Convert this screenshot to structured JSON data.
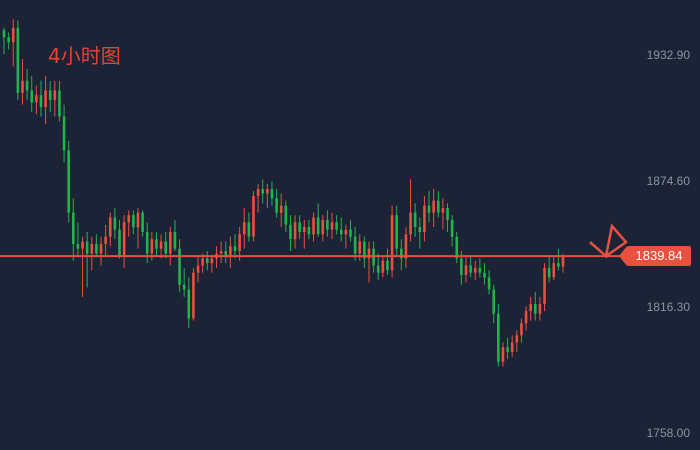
{
  "title": "4小时图",
  "colors": {
    "background": "#1d2336",
    "up": "#e9513f",
    "down": "#22b34c",
    "priceLine": "#e9513f",
    "title": "#e4432f",
    "tick": "#8b93a6"
  },
  "current_price_label": "1839.84",
  "chart_data": {
    "type": "candlestick",
    "title": "4小时图",
    "ylim": [
      1750,
      1950
    ],
    "y_ticks": [
      "1932.90",
      "1874.60",
      "1816.30",
      "1758.00"
    ],
    "current_price": 1839.84,
    "grid": false,
    "candles": [
      [
        1944.4,
        1945.5,
        1933.3,
        1941.1
      ],
      [
        1941.1,
        1943.3,
        1935.5,
        1938.8
      ],
      [
        1938.8,
        1949.4,
        1927.7,
        1945.5
      ],
      [
        1945.5,
        1948.8,
        1912.1,
        1915.4
      ],
      [
        1915.4,
        1931.0,
        1910.0,
        1921.0
      ],
      [
        1921.0,
        1926.5,
        1912.1,
        1916.5
      ],
      [
        1916.5,
        1923.2,
        1906.6,
        1911.0
      ],
      [
        1911.0,
        1918.8,
        1905.5,
        1914.3
      ],
      [
        1914.3,
        1921.0,
        1904.4,
        1908.8
      ],
      [
        1908.8,
        1923.2,
        1901.0,
        1916.5
      ],
      [
        1916.5,
        1920.9,
        1906.6,
        1912.1
      ],
      [
        1912.1,
        1920.9,
        1904.4,
        1916.5
      ],
      [
        1916.5,
        1920.9,
        1902.1,
        1904.4
      ],
      [
        1904.4,
        1909.9,
        1883.3,
        1888.8
      ],
      [
        1888.8,
        1893.2,
        1855.5,
        1860.0
      ],
      [
        1860.0,
        1866.6,
        1837.7,
        1845.5
      ],
      [
        1845.5,
        1855.5,
        1839.9,
        1843.3
      ],
      [
        1843.3,
        1848.8,
        1821.0,
        1846.6
      ],
      [
        1846.6,
        1851.0,
        1825.4,
        1841.0
      ],
      [
        1841.0,
        1848.8,
        1833.3,
        1845.5
      ],
      [
        1845.5,
        1849.9,
        1839.9,
        1841.0
      ],
      [
        1841.0,
        1848.8,
        1835.5,
        1845.5
      ],
      [
        1845.5,
        1854.3,
        1840.0,
        1848.8
      ],
      [
        1848.8,
        1859.9,
        1844.4,
        1857.7
      ],
      [
        1857.7,
        1862.1,
        1847.7,
        1852.1
      ],
      [
        1852.1,
        1856.6,
        1838.8,
        1840.0
      ],
      [
        1840.0,
        1858.8,
        1834.4,
        1855.5
      ],
      [
        1855.5,
        1861.0,
        1848.8,
        1858.8
      ],
      [
        1858.8,
        1861.0,
        1850.0,
        1853.2
      ],
      [
        1853.2,
        1862.1,
        1843.3,
        1859.9
      ],
      [
        1859.9,
        1861.0,
        1848.8,
        1851.0
      ],
      [
        1851.0,
        1855.5,
        1836.6,
        1841.0
      ],
      [
        1841.0,
        1851.0,
        1837.7,
        1847.7
      ],
      [
        1847.7,
        1851.0,
        1839.9,
        1843.3
      ],
      [
        1843.3,
        1849.9,
        1838.8,
        1846.6
      ],
      [
        1846.6,
        1851.0,
        1838.8,
        1841.0
      ],
      [
        1841.0,
        1853.3,
        1835.5,
        1851.0
      ],
      [
        1851.0,
        1856.6,
        1842.2,
        1843.3
      ],
      [
        1843.3,
        1847.7,
        1823.2,
        1826.6
      ],
      [
        1826.6,
        1834.4,
        1821.0,
        1824.4
      ],
      [
        1824.4,
        1830.0,
        1806.6,
        1811.0
      ],
      [
        1811.0,
        1834.4,
        1810.0,
        1832.2
      ],
      [
        1832.2,
        1839.9,
        1827.7,
        1835.5
      ],
      [
        1835.5,
        1841.0,
        1832.2,
        1838.8
      ],
      [
        1838.8,
        1842.2,
        1833.3,
        1836.6
      ],
      [
        1836.6,
        1840.0,
        1832.2,
        1838.8
      ],
      [
        1838.8,
        1844.4,
        1834.4,
        1841.0
      ],
      [
        1841.0,
        1846.6,
        1836.6,
        1842.2
      ],
      [
        1842.2,
        1846.6,
        1836.6,
        1839.9
      ],
      [
        1839.9,
        1848.8,
        1834.4,
        1844.4
      ],
      [
        1844.4,
        1850.0,
        1838.8,
        1842.2
      ],
      [
        1842.2,
        1853.3,
        1837.7,
        1850.0
      ],
      [
        1850.0,
        1862.1,
        1843.3,
        1855.5
      ],
      [
        1855.5,
        1860.0,
        1846.6,
        1848.8
      ],
      [
        1848.8,
        1869.9,
        1846.6,
        1867.7
      ],
      [
        1867.7,
        1873.2,
        1860.0,
        1870.9
      ],
      [
        1870.9,
        1875.4,
        1864.3,
        1868.8
      ],
      [
        1868.8,
        1873.2,
        1862.1,
        1870.9
      ],
      [
        1870.9,
        1874.3,
        1863.2,
        1866.6
      ],
      [
        1866.6,
        1871.0,
        1857.7,
        1859.9
      ],
      [
        1859.9,
        1868.8,
        1853.3,
        1863.2
      ],
      [
        1863.2,
        1865.5,
        1851.0,
        1854.4
      ],
      [
        1854.4,
        1858.8,
        1842.2,
        1847.7
      ],
      [
        1847.7,
        1858.8,
        1843.3,
        1855.5
      ],
      [
        1855.5,
        1858.8,
        1847.7,
        1851.0
      ],
      [
        1851.0,
        1856.6,
        1843.3,
        1853.3
      ],
      [
        1853.3,
        1856.6,
        1847.7,
        1849.9
      ],
      [
        1849.9,
        1860.0,
        1846.6,
        1857.7
      ],
      [
        1857.7,
        1864.3,
        1848.8,
        1850.0
      ],
      [
        1850.0,
        1858.8,
        1846.6,
        1856.6
      ],
      [
        1856.6,
        1861.0,
        1848.8,
        1852.1
      ],
      [
        1852.1,
        1859.9,
        1847.7,
        1855.5
      ],
      [
        1855.5,
        1858.8,
        1849.9,
        1852.1
      ],
      [
        1852.1,
        1857.7,
        1846.6,
        1849.9
      ],
      [
        1849.9,
        1854.4,
        1843.3,
        1852.1
      ],
      [
        1852.1,
        1856.6,
        1846.6,
        1848.8
      ],
      [
        1848.8,
        1853.3,
        1837.7,
        1841.0
      ],
      [
        1841.0,
        1849.9,
        1837.7,
        1846.6
      ],
      [
        1846.6,
        1848.8,
        1834.4,
        1838.8
      ],
      [
        1838.8,
        1846.6,
        1827.7,
        1843.3
      ],
      [
        1843.3,
        1846.6,
        1832.2,
        1835.5
      ],
      [
        1835.5,
        1841.0,
        1828.8,
        1832.2
      ],
      [
        1832.2,
        1839.9,
        1830.0,
        1837.7
      ],
      [
        1837.7,
        1843.3,
        1831.1,
        1833.3
      ],
      [
        1833.3,
        1863.2,
        1830.0,
        1858.8
      ],
      [
        1858.8,
        1863.2,
        1840.0,
        1843.3
      ],
      [
        1843.3,
        1847.7,
        1833.3,
        1838.8
      ],
      [
        1838.8,
        1853.2,
        1834.4,
        1849.9
      ],
      [
        1849.9,
        1875.4,
        1846.6,
        1860.0
      ],
      [
        1860.0,
        1864.3,
        1848.8,
        1853.3
      ],
      [
        1853.3,
        1857.7,
        1843.3,
        1851.0
      ],
      [
        1851.0,
        1867.7,
        1846.6,
        1863.2
      ],
      [
        1863.2,
        1869.9,
        1855.5,
        1859.9
      ],
      [
        1859.9,
        1871.0,
        1853.3,
        1865.5
      ],
      [
        1865.5,
        1869.9,
        1857.7,
        1860.0
      ],
      [
        1860.0,
        1866.6,
        1852.2,
        1862.1
      ],
      [
        1862.1,
        1864.3,
        1851.0,
        1856.6
      ],
      [
        1856.6,
        1858.8,
        1844.4,
        1848.8
      ],
      [
        1848.8,
        1851.0,
        1836.6,
        1838.8
      ],
      [
        1838.8,
        1842.2,
        1826.6,
        1831.1
      ],
      [
        1831.1,
        1840.0,
        1827.7,
        1835.5
      ],
      [
        1835.5,
        1840.0,
        1830.0,
        1832.2
      ],
      [
        1832.2,
        1837.7,
        1828.8,
        1834.4
      ],
      [
        1834.4,
        1838.8,
        1830.0,
        1832.2
      ],
      [
        1832.2,
        1836.6,
        1826.6,
        1829.9
      ],
      [
        1829.9,
        1833.3,
        1822.1,
        1824.4
      ],
      [
        1824.4,
        1826.6,
        1808.8,
        1813.2
      ],
      [
        1813.2,
        1817.7,
        1788.8,
        1791.0
      ],
      [
        1791.0,
        1799.9,
        1788.8,
        1797.7
      ],
      [
        1797.7,
        1802.1,
        1792.2,
        1795.5
      ],
      [
        1795.5,
        1803.2,
        1793.3,
        1799.9
      ],
      [
        1799.9,
        1805.5,
        1795.5,
        1803.2
      ],
      [
        1803.2,
        1811.0,
        1799.9,
        1808.8
      ],
      [
        1808.8,
        1816.6,
        1805.5,
        1814.4
      ],
      [
        1814.4,
        1821.0,
        1810.0,
        1817.7
      ],
      [
        1817.7,
        1823.2,
        1810.0,
        1813.2
      ],
      [
        1813.2,
        1821.0,
        1810.0,
        1817.7
      ],
      [
        1817.7,
        1836.6,
        1814.4,
        1834.4
      ],
      [
        1834.4,
        1839.9,
        1827.7,
        1830.0
      ],
      [
        1830.0,
        1839.9,
        1828.8,
        1836.6
      ],
      [
        1836.6,
        1843.3,
        1833.3,
        1835.0
      ],
      [
        1835.0,
        1841.0,
        1832.2,
        1839.8
      ]
    ]
  }
}
